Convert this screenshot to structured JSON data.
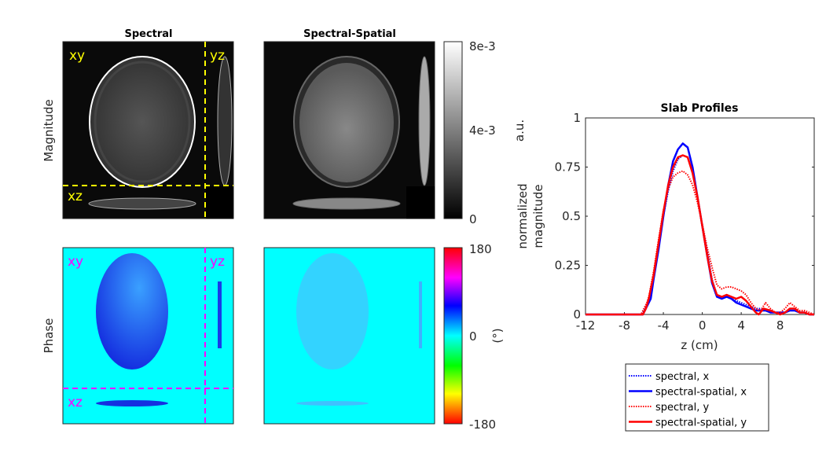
{
  "figure": {
    "column_titles": [
      "Spectral",
      "Spectral-Spatial"
    ],
    "row_labels": [
      "Magnitude",
      "Phase"
    ],
    "view_labels": {
      "xy": "xy",
      "yz": "yz",
      "xz": "xz"
    },
    "magnitude_colorbar": {
      "ticks": [
        "8e-3",
        "4e-3",
        "0"
      ],
      "unit": "a.u.",
      "colormap": "gray"
    },
    "phase_colorbar": {
      "ticks": [
        "180",
        "0",
        "-180"
      ],
      "unit": "(°)",
      "colormap": "hsv"
    },
    "colors": {
      "magnitude_overlay": "#ffff00",
      "phase_overlay": "#ff00ff",
      "phase_background": "#00ffff"
    }
  },
  "chart_data": {
    "type": "line",
    "title": "Slab Profiles",
    "xlabel": "z (cm)",
    "ylabel": [
      "normalized",
      "magnitude"
    ],
    "xlim": [
      -12,
      11.5
    ],
    "ylim": [
      0,
      1
    ],
    "xticks": [
      "-12",
      "-8",
      "-4",
      "0",
      "4",
      "8"
    ],
    "xtick_values": [
      -12,
      -8,
      -4,
      0,
      4,
      8
    ],
    "yticks": [
      "0",
      "0.25",
      "0.5",
      "0.75",
      "1"
    ],
    "ytick_values": [
      0,
      0.25,
      0.5,
      0.75,
      1
    ],
    "legend_position": "below",
    "series": [
      {
        "name": "spectral, x",
        "color": "#0000ff",
        "style": "dotted",
        "x": [
          -12,
          -6.2,
          -5.8,
          -5.3,
          -5,
          -4.5,
          -4,
          -3.5,
          -3,
          -2.5,
          -2,
          -1.5,
          -1,
          -0.5,
          0,
          0.5,
          1,
          1.5,
          2,
          2.5,
          3,
          3.5,
          4,
          4.5,
          5,
          5.5,
          6,
          6.5,
          7,
          7.5,
          8,
          8.5,
          9,
          9.5,
          10,
          10.5,
          11,
          11.5
        ],
        "y": [
          0,
          0,
          0.04,
          0.1,
          0.2,
          0.35,
          0.5,
          0.63,
          0.73,
          0.79,
          0.81,
          0.8,
          0.72,
          0.6,
          0.45,
          0.32,
          0.18,
          0.1,
          0.08,
          0.09,
          0.08,
          0.07,
          0.06,
          0.05,
          0.04,
          0.03,
          0.03,
          0.02,
          0.02,
          0.01,
          0.01,
          0.01,
          0.02,
          0.02,
          0.01,
          0.01,
          0,
          0
        ]
      },
      {
        "name": "spectral-spatial, x",
        "color": "#0000ff",
        "style": "solid",
        "x": [
          -12,
          -6.1,
          -5.8,
          -5.3,
          -5,
          -4.5,
          -4,
          -3.5,
          -3,
          -2.5,
          -2,
          -1.5,
          -1,
          -0.5,
          0,
          0.5,
          1,
          1.5,
          2,
          2.5,
          3,
          3.5,
          4,
          4.5,
          5,
          5.5,
          6,
          6.5,
          7,
          7.5,
          8,
          8.5,
          9,
          9.5,
          10,
          10.5,
          11,
          11.5
        ],
        "y": [
          0,
          0,
          0.03,
          0.08,
          0.18,
          0.33,
          0.5,
          0.66,
          0.78,
          0.84,
          0.87,
          0.85,
          0.75,
          0.6,
          0.45,
          0.3,
          0.16,
          0.09,
          0.08,
          0.09,
          0.08,
          0.06,
          0.05,
          0.04,
          0.03,
          0.02,
          0.02,
          0.02,
          0.01,
          0.01,
          0.01,
          0.01,
          0.02,
          0.02,
          0.01,
          0.01,
          0,
          0
        ]
      },
      {
        "name": "spectral, y",
        "color": "#ff0000",
        "style": "dotted",
        "x": [
          -12,
          -6.3,
          -6,
          -5.7,
          -5.5,
          -5,
          -4.5,
          -4,
          -3.5,
          -3,
          -2.5,
          -2,
          -1.5,
          -1,
          -0.5,
          0,
          0.5,
          1,
          1.5,
          2,
          2.5,
          3,
          3.5,
          4,
          4.5,
          5,
          5.5,
          6,
          6.5,
          7,
          7.5,
          8,
          8.5,
          9,
          9.5,
          10,
          10.5,
          11,
          11.5
        ],
        "y": [
          0,
          0,
          0.03,
          0.06,
          0.09,
          0.22,
          0.38,
          0.53,
          0.64,
          0.7,
          0.72,
          0.73,
          0.71,
          0.66,
          0.57,
          0.46,
          0.34,
          0.24,
          0.15,
          0.13,
          0.14,
          0.14,
          0.13,
          0.12,
          0.1,
          0.06,
          0.03,
          0.02,
          0.06,
          0.03,
          0.01,
          0.01,
          0.03,
          0.06,
          0.04,
          0.02,
          0.02,
          0.01,
          0
        ]
      },
      {
        "name": "spectral-spatial, y",
        "color": "#ff0000",
        "style": "solid",
        "x": [
          -12,
          -6.1,
          -5.8,
          -5.5,
          -5,
          -4.5,
          -4,
          -3.5,
          -3,
          -2.5,
          -2,
          -1.5,
          -1,
          -0.5,
          0,
          0.5,
          1,
          1.5,
          2,
          2.5,
          3,
          3.5,
          4,
          4.5,
          5,
          5.5,
          5.8,
          6.3,
          7,
          7.5,
          8,
          8.5,
          9,
          9.5,
          10,
          10.5,
          11,
          11.5
        ],
        "y": [
          0,
          0,
          0.03,
          0.08,
          0.2,
          0.36,
          0.52,
          0.66,
          0.75,
          0.8,
          0.81,
          0.8,
          0.72,
          0.6,
          0.45,
          0.3,
          0.17,
          0.1,
          0.09,
          0.1,
          0.09,
          0.08,
          0.09,
          0.07,
          0.04,
          0.01,
          0,
          0.03,
          0.02,
          0.01,
          0,
          0.01,
          0.03,
          0.03,
          0.01,
          0.01,
          0,
          0
        ]
      }
    ]
  }
}
